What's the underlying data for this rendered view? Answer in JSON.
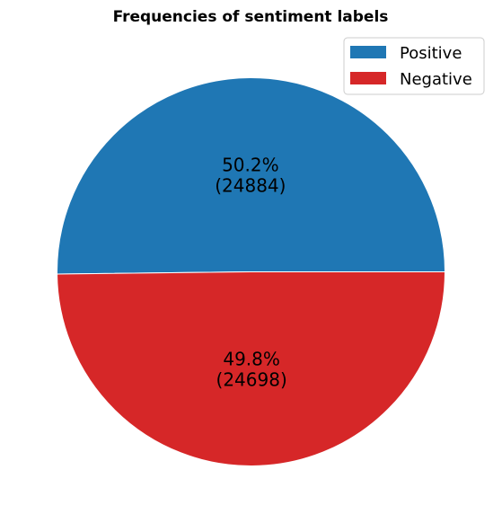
{
  "chart_data": {
    "type": "pie",
    "title": "Frequencies of sentiment labels",
    "categories": [
      "Positive",
      "Negative"
    ],
    "values": [
      24884,
      24698
    ],
    "percent_labels": [
      "50.2%",
      "49.8%"
    ],
    "count_labels": [
      "(24884)",
      "(24698)"
    ],
    "colors": [
      "#1f77b4",
      "#d62728"
    ],
    "legend": {
      "placement": "top-right",
      "entries": [
        "Positive",
        "Negative"
      ]
    }
  }
}
